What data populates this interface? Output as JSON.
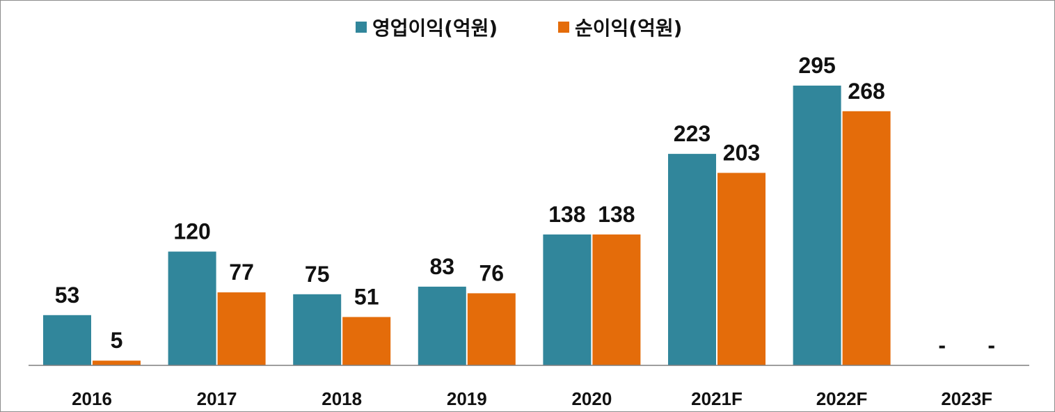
{
  "chart_data": {
    "type": "bar",
    "title": "",
    "xlabel": "",
    "ylabel": "",
    "ylim": [
      0,
      330
    ],
    "grid": false,
    "legend_position": "top-center",
    "categories": [
      "2016",
      "2017",
      "2018",
      "2019",
      "2020",
      "2021F",
      "2022F",
      "2023F"
    ],
    "series": [
      {
        "name": "영업이익(억원)",
        "color": "#31869b",
        "values": [
          53,
          120,
          75,
          83,
          138,
          223,
          295,
          null
        ],
        "labels": [
          "53",
          "120",
          "75",
          "83",
          "138",
          "223",
          "295",
          "-"
        ]
      },
      {
        "name": "순이익(억원)",
        "color": "#e46c0a",
        "values": [
          5,
          77,
          51,
          76,
          138,
          203,
          268,
          null
        ],
        "labels": [
          "5",
          "77",
          "51",
          "76",
          "138",
          "203",
          "268",
          "-"
        ]
      }
    ],
    "axis_color": "#7f7f7f"
  }
}
